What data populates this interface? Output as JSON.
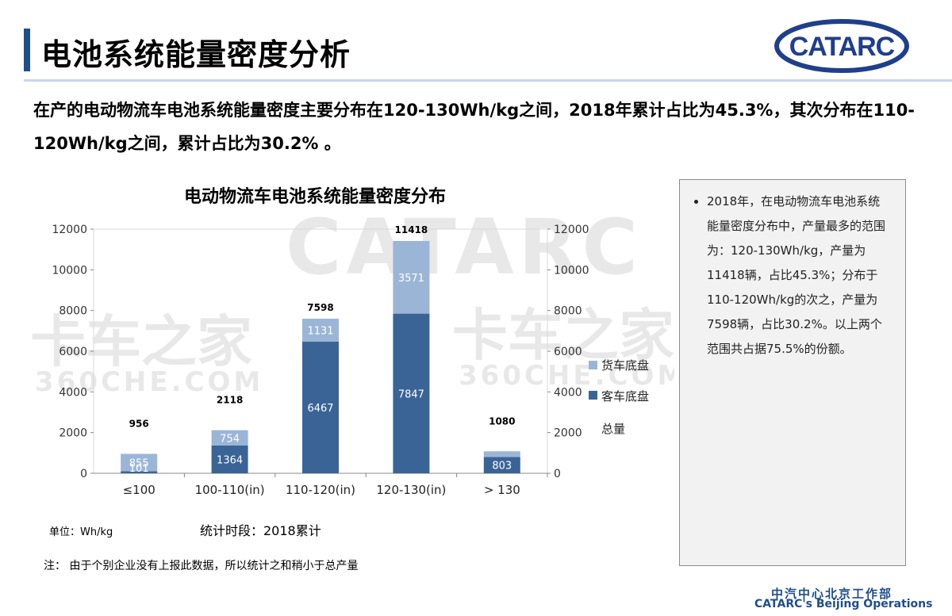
{
  "header": {
    "title": "电池系统能量密度分析",
    "logo_text": "CATARC"
  },
  "intro": {
    "text": "在产的电动物流车电池系统能量密度主要分布在120-130Wh/kg之间，2018年累计占比为45.3%，其次分布在110-120Wh/kg之间，累计占比为30.2% 。"
  },
  "watermark": {
    "brand": "CATARC",
    "cn": "卡车之家",
    "en": "360CHE.COM"
  },
  "chart_data": {
    "type": "bar",
    "stacked": true,
    "title": "电动物流车电池系统能量密度分布",
    "categories": [
      "≤100",
      "100-110(in)",
      "110-120(in)",
      "120-130(in)",
      "> 130"
    ],
    "series": [
      {
        "name": "客车底盘",
        "values": [
          101,
          1364,
          6467,
          7847,
          803
        ],
        "color": "#3a6496"
      },
      {
        "name": "货车底盘",
        "values": [
          855,
          754,
          1131,
          3571,
          277
        ],
        "color": "#9bb5d6"
      },
      {
        "name": "总量",
        "values": [
          956,
          2118,
          7598,
          11418,
          1080
        ],
        "color": ""
      }
    ],
    "ylim": [
      0,
      12000
    ],
    "yticks": [
      0,
      2000,
      4000,
      6000,
      8000,
      10000,
      12000
    ],
    "ytick_labels": [
      "0",
      "2000",
      "4000",
      "6000",
      "8000",
      "10000",
      "12000"
    ],
    "secondary_axis": true,
    "legend_position": "right",
    "grid": false
  },
  "labels": {
    "unit": "单位：Wh/kg",
    "period": "统计时段：2018累计",
    "note": "注：  由于个别企业没有上报此数据，所以统计之和稍小于总产量"
  },
  "side_panel": {
    "text": "2018年，在电动物流车电池系统能量密度分布中，产量最多的范围为：120-130Wh/kg，产量为11418辆，占比45.3%；分布于110-120Wh/kg的次之，产量为7598辆，占比30.2%。以上两个范围共占据75.5%的份额。"
  },
  "footer": {
    "cn": "中汽中心北京工作部",
    "en": "CATARC's Beijing Operations"
  }
}
